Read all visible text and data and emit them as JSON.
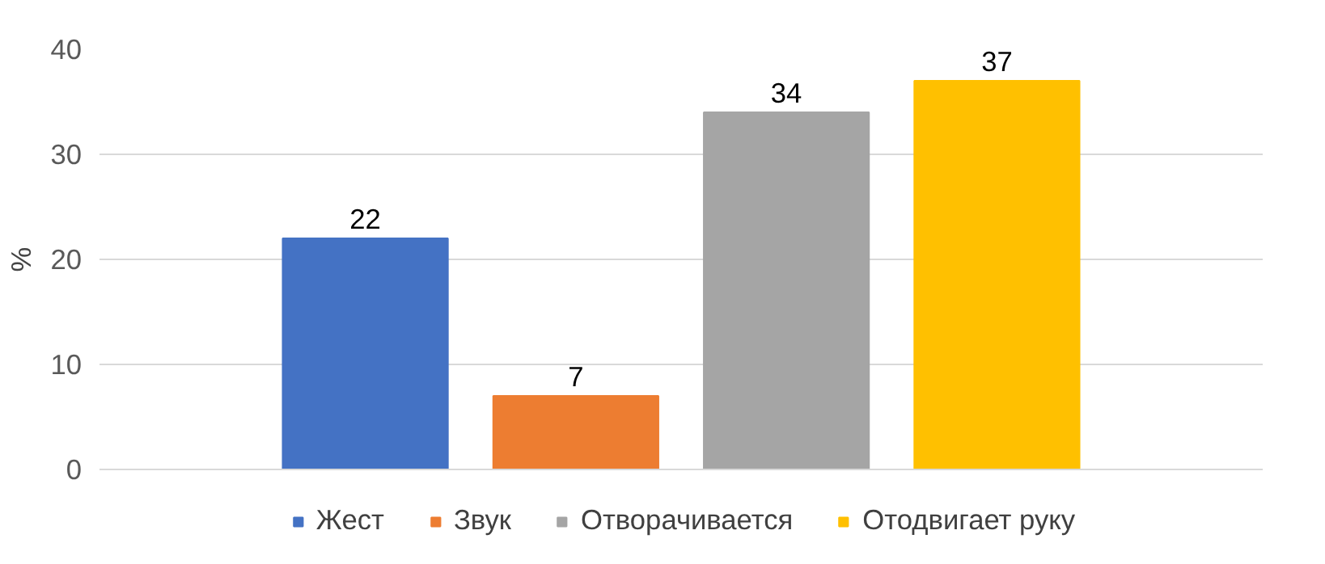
{
  "chart_data": {
    "type": "bar",
    "ylabel": "%",
    "categories": [
      null
    ],
    "series": [
      {
        "name": "Жест",
        "color": "#4472c4",
        "values": [
          22
        ]
      },
      {
        "name": "Звук",
        "color": "#ed7d31",
        "values": [
          7
        ]
      },
      {
        "name": "Отворачивается",
        "color": "#a5a5a5",
        "values": [
          34
        ]
      },
      {
        "name": "Отодвигает руку",
        "color": "#ffc000",
        "values": [
          37
        ]
      }
    ],
    "ylim": [
      0,
      40
    ],
    "yticks": [
      0,
      10,
      20,
      30,
      40
    ],
    "grid": "y",
    "legend": "bottom",
    "data_labels": true
  }
}
